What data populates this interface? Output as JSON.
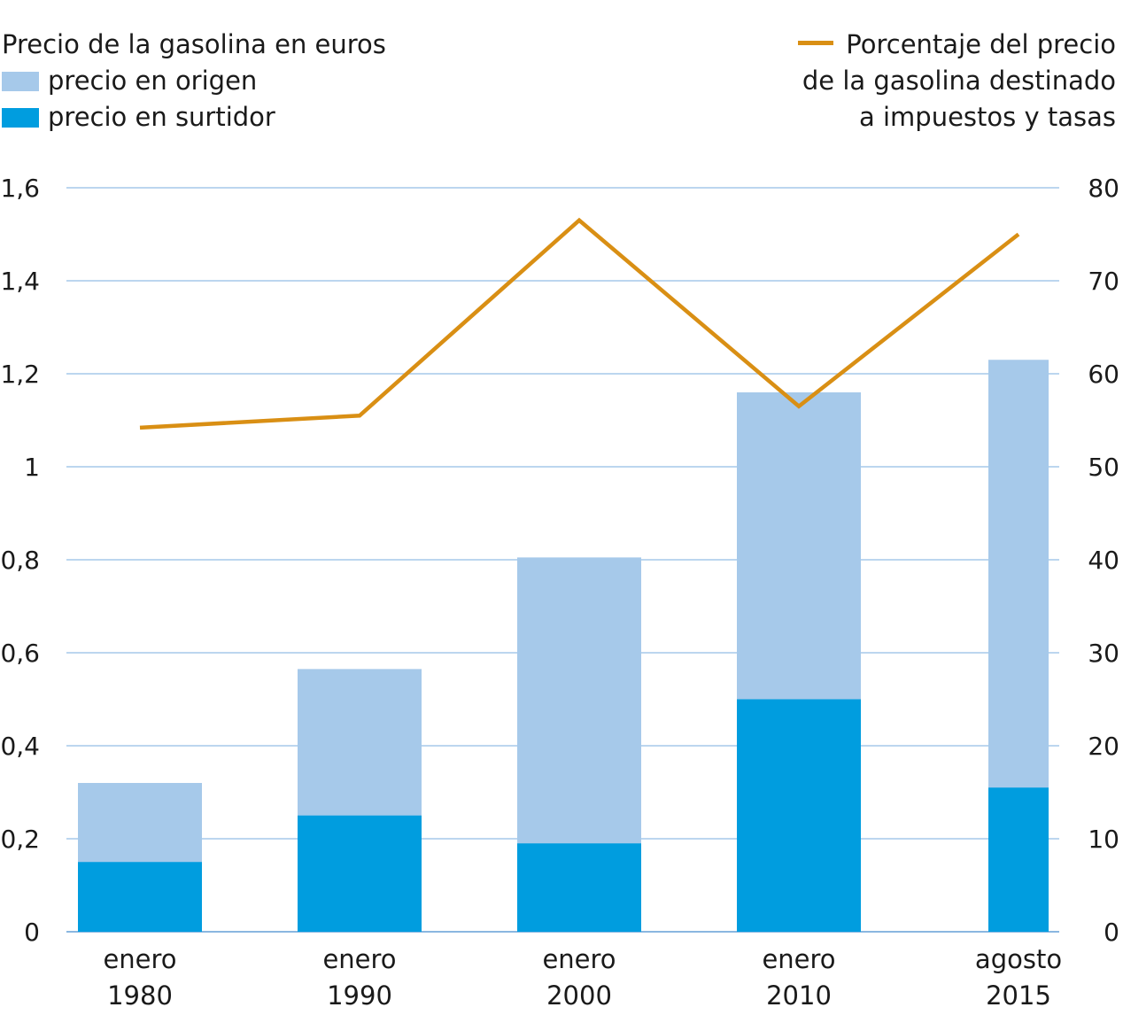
{
  "legend": {
    "left_title": "Precio de la gasolina en euros",
    "items": [
      {
        "label": "precio en origen",
        "color": "#a6c9ea"
      },
      {
        "label": "precio en surtidor",
        "color": "#009ddf"
      }
    ],
    "right_lines": [
      "Porcentaje del precio",
      "de la gasolina destinado",
      "a impuestos y tasas"
    ],
    "right_color": "#d98f14"
  },
  "chart_data": {
    "type": "bar",
    "stacked": true,
    "categories": [
      [
        "enero",
        "1980"
      ],
      [
        "enero",
        "1990"
      ],
      [
        "enero",
        "2000"
      ],
      [
        "enero",
        "2010"
      ],
      [
        "agosto",
        "2015"
      ]
    ],
    "series": [
      {
        "name": "precio en surtidor",
        "values": [
          0.15,
          0.25,
          0.19,
          0.5,
          0.31
        ],
        "color": "#009ddf"
      },
      {
        "name": "precio en origen",
        "values": [
          0.32,
          0.565,
          0.805,
          1.16,
          1.23
        ],
        "color": "#a6c9ea"
      }
    ],
    "line_series": {
      "name": "Porcentaje del precio de la gasolina destinado a impuestos y tasas",
      "values": [
        54.2,
        55.5,
        76.5,
        56.5,
        75
      ],
      "color": "#d98f14",
      "axis": "right"
    },
    "y_left": {
      "range": [
        0,
        1.6
      ],
      "ticks": [
        "0",
        "0,2",
        "0,4",
        "0,6",
        "0,8",
        "1",
        "1,2",
        "1,4",
        "1,6"
      ]
    },
    "y_right": {
      "range": [
        0,
        80
      ],
      "ticks": [
        "0",
        "10",
        "20",
        "30",
        "40",
        "50",
        "60",
        "70",
        "80"
      ]
    },
    "grid": true,
    "gridColor": "#a6c9ea"
  }
}
